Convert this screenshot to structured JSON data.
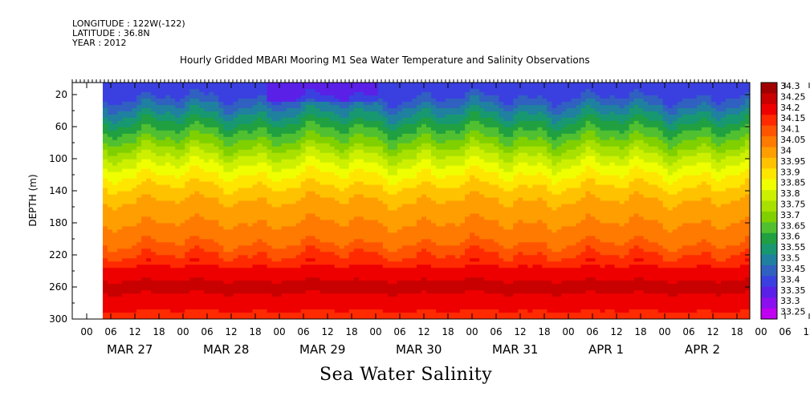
{
  "header": {
    "longitude": "LONGITUDE : 122W(-122)",
    "latitude": "LATITUDE : 36.8N",
    "year": "YEAR : 2012"
  },
  "chart_data": {
    "type": "heatmap",
    "title": "Hourly Gridded MBARI Mooring M1 Sea Water Temperature and Salinity Observations",
    "xlabel": "Sea Water Salinity",
    "ylabel": "DEPTH (m)",
    "y_ticks": [
      20,
      60,
      100,
      140,
      180,
      220,
      260,
      300
    ],
    "y_range": [
      5,
      300
    ],
    "y_reversed": true,
    "x_hour_ticks": [
      "00",
      "06",
      "12",
      "18",
      "00",
      "06",
      "12",
      "18",
      "00",
      "06",
      "12",
      "18",
      "00",
      "06",
      "12",
      "18",
      "00",
      "06",
      "12",
      "18",
      "00",
      "06",
      "12",
      "18",
      "00",
      "06",
      "12",
      "18",
      "00",
      "06",
      "12",
      "18"
    ],
    "x_day_labels": [
      "MAR 27",
      "MAR 28",
      "MAR 29",
      "MAR 30",
      "MAR 31",
      "APR  1",
      "APR  2"
    ],
    "colorbar_levels": [
      "34.3",
      "34.25",
      "34.2",
      "34.15",
      "34.1",
      "34.05",
      "34",
      "33.95",
      "33.9",
      "33.85",
      "33.8",
      "33.75",
      "33.7",
      "33.65",
      "33.6",
      "33.55",
      "33.5",
      "33.45",
      "33.4",
      "33.35",
      "33.3",
      "33.25"
    ],
    "colorbar_colors": [
      "#a00000",
      "#c80000",
      "#ee0000",
      "#ff2a00",
      "#ff5500",
      "#ff7a00",
      "#ff9e00",
      "#ffc200",
      "#ffe600",
      "#f0ff00",
      "#ccf000",
      "#a8e000",
      "#80d000",
      "#50c030",
      "#20a040",
      "#189870",
      "#2080a0",
      "#3060c0",
      "#3a40e0",
      "#5a20e8",
      "#8a10f0",
      "#c000f0"
    ],
    "salinity_by_depth": [
      {
        "depth": 5,
        "value": 33.4
      },
      {
        "depth": 20,
        "value": 33.43
      },
      {
        "depth": 40,
        "value": 33.53
      },
      {
        "depth": 60,
        "value": 33.63
      },
      {
        "depth": 80,
        "value": 33.72
      },
      {
        "depth": 100,
        "value": 33.82
      },
      {
        "depth": 120,
        "value": 33.9
      },
      {
        "depth": 140,
        "value": 33.97
      },
      {
        "depth": 160,
        "value": 34.02
      },
      {
        "depth": 180,
        "value": 34.05
      },
      {
        "depth": 200,
        "value": 34.08
      },
      {
        "depth": 220,
        "value": 34.15
      },
      {
        "depth": 240,
        "value": 34.22
      },
      {
        "depth": 260,
        "value": 34.27
      },
      {
        "depth": 280,
        "value": 34.22
      },
      {
        "depth": 300,
        "value": 34.18
      }
    ]
  }
}
